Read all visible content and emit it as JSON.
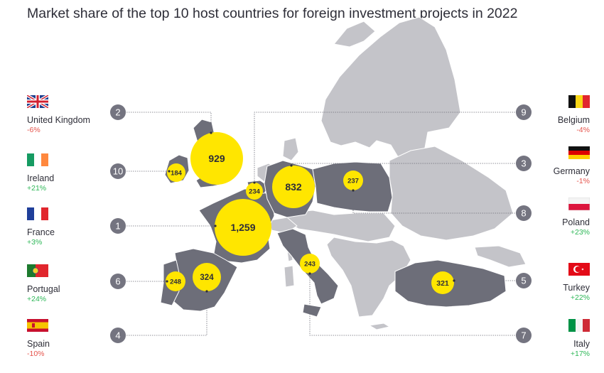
{
  "title": "Market share of the top 10 host countries for foreign investment projects in 2022",
  "colors": {
    "highlight_country": "#6d6e79",
    "other_country": "#c4c4c9",
    "bubble": "#ffe600",
    "badge": "#747480",
    "negative": "#e5534b",
    "positive": "#2db757"
  },
  "countries": [
    {
      "id": "uk",
      "name": "United Kingdom",
      "rank": "2",
      "projects": "929",
      "change": "-6%",
      "trend": "neg",
      "side": "left",
      "flag": "uk-flag-icon"
    },
    {
      "id": "ireland",
      "name": "Ireland",
      "rank": "10",
      "projects": "184",
      "change": "+21%",
      "trend": "pos",
      "side": "left",
      "flag": "ireland-flag-icon"
    },
    {
      "id": "france",
      "name": "France",
      "rank": "1",
      "projects": "1,259",
      "change": "+3%",
      "trend": "pos",
      "side": "left",
      "flag": "france-flag-icon"
    },
    {
      "id": "portugal",
      "name": "Portugal",
      "rank": "6",
      "projects": "248",
      "change": "+24%",
      "trend": "pos",
      "side": "left",
      "flag": "portugal-flag-icon"
    },
    {
      "id": "spain",
      "name": "Spain",
      "rank": "4",
      "projects": "324",
      "change": "-10%",
      "trend": "neg",
      "side": "left",
      "flag": "spain-flag-icon"
    },
    {
      "id": "belgium",
      "name": "Belgium",
      "rank": "9",
      "projects": "234",
      "change": "-4%",
      "trend": "neg",
      "side": "right",
      "flag": "belgium-flag-icon"
    },
    {
      "id": "germany",
      "name": "Germany",
      "rank": "3",
      "projects": "832",
      "change": "-1%",
      "trend": "neg",
      "side": "right",
      "flag": "germany-flag-icon"
    },
    {
      "id": "poland",
      "name": "Poland",
      "rank": "8",
      "projects": "237",
      "change": "+23%",
      "trend": "pos",
      "side": "right",
      "flag": "poland-flag-icon"
    },
    {
      "id": "turkey",
      "name": "Turkey",
      "rank": "5",
      "projects": "321",
      "change": "+22%",
      "trend": "pos",
      "side": "right",
      "flag": "turkey-flag-icon"
    },
    {
      "id": "italy",
      "name": "Italy",
      "rank": "7",
      "projects": "243",
      "change": "+17%",
      "trend": "pos",
      "side": "right",
      "flag": "italy-flag-icon"
    }
  ]
}
